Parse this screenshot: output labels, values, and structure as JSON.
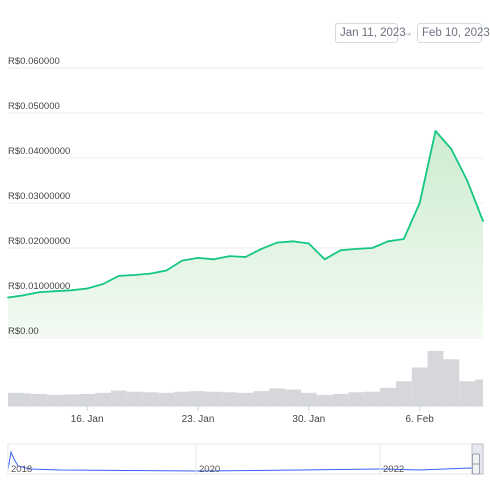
{
  "date_range": {
    "start": "Jan 11, 2023",
    "arrow": "→",
    "end": "Feb 10, 2023"
  },
  "colors": {
    "line": "#16c784",
    "fill_top": "#cdeccf",
    "fill_bottom": "#f3faf3",
    "volume": "#d5d7da",
    "grid": "#eceef1",
    "tick": "#444444",
    "nav_line": "#3861fb"
  },
  "chart_data": {
    "type": "area",
    "title": "",
    "xlabel": "",
    "ylabel": "",
    "ylim": [
      0,
      0.06
    ],
    "y_tick_values": [
      0,
      0.01,
      0.02,
      0.03,
      0.04,
      0.05,
      0.06
    ],
    "y_tick_labels": [
      "R$0.00",
      "R$0.01000000",
      "R$0.02000000",
      "R$0.03000000",
      "R$0.04000000",
      "R$0.050000",
      "R$0.060000"
    ],
    "x_tick_labels": [
      {
        "date": "2023-01-16",
        "label": "16. Jan"
      },
      {
        "date": "2023-01-23",
        "label": "23. Jan"
      },
      {
        "date": "2023-01-30",
        "label": "30. Jan"
      },
      {
        "date": "2023-02-06",
        "label": "6. Feb"
      }
    ],
    "x_range": [
      "2023-01-11",
      "2023-02-10"
    ],
    "grid": true,
    "series": [
      {
        "type": "area",
        "x": [
          "2023-01-11",
          "2023-01-12",
          "2023-01-13",
          "2023-01-14",
          "2023-01-15",
          "2023-01-16",
          "2023-01-17",
          "2023-01-18",
          "2023-01-19",
          "2023-01-20",
          "2023-01-21",
          "2023-01-22",
          "2023-01-23",
          "2023-01-24",
          "2023-01-25",
          "2023-01-26",
          "2023-01-27",
          "2023-01-28",
          "2023-01-29",
          "2023-01-30",
          "2023-01-31",
          "2023-02-01",
          "2023-02-02",
          "2023-02-03",
          "2023-02-04",
          "2023-02-05",
          "2023-02-06",
          "2023-02-07",
          "2023-02-08",
          "2023-02-09",
          "2023-02-10"
        ],
        "values": [
          0.009,
          0.0095,
          0.0102,
          0.0104,
          0.0106,
          0.011,
          0.012,
          0.0138,
          0.014,
          0.0143,
          0.015,
          0.0172,
          0.0178,
          0.0175,
          0.0182,
          0.018,
          0.0198,
          0.0212,
          0.0215,
          0.021,
          0.0175,
          0.0195,
          0.0198,
          0.02,
          0.0215,
          0.022,
          0.03,
          0.046,
          0.042,
          0.035,
          0.026
        ]
      },
      {
        "type": "bar",
        "name": "volume",
        "x": [
          "2023-01-11",
          "2023-01-12",
          "2023-01-13",
          "2023-01-14",
          "2023-01-15",
          "2023-01-16",
          "2023-01-17",
          "2023-01-18",
          "2023-01-19",
          "2023-01-20",
          "2023-01-21",
          "2023-01-22",
          "2023-01-23",
          "2023-01-24",
          "2023-01-25",
          "2023-01-26",
          "2023-01-27",
          "2023-01-28",
          "2023-01-29",
          "2023-01-30",
          "2023-01-31",
          "2023-02-01",
          "2023-02-02",
          "2023-02-03",
          "2023-02-04",
          "2023-02-05",
          "2023-02-06",
          "2023-02-07",
          "2023-02-08",
          "2023-02-09",
          "2023-02-10"
        ],
        "values": [
          0.24,
          0.23,
          0.22,
          0.2,
          0.21,
          0.22,
          0.24,
          0.28,
          0.26,
          0.25,
          0.24,
          0.26,
          0.27,
          0.26,
          0.25,
          0.24,
          0.27,
          0.32,
          0.3,
          0.24,
          0.2,
          0.22,
          0.25,
          0.26,
          0.33,
          0.45,
          0.7,
          1.0,
          0.85,
          0.45,
          0.48
        ]
      }
    ]
  },
  "navigator": {
    "labels": [
      "2018",
      "2020",
      "2022"
    ]
  }
}
